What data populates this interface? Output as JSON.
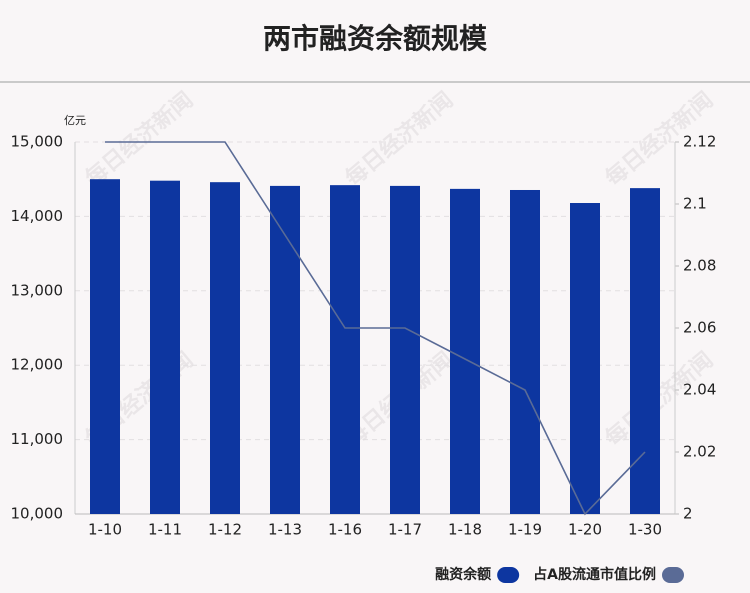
{
  "chart_data": {
    "type": "bar-line",
    "title": "两市融资余额规模",
    "y_unit": "亿元",
    "watermark": "每日经济新闻",
    "categories": [
      "1-10",
      "1-11",
      "1-12",
      "1-13",
      "1-16",
      "1-17",
      "1-18",
      "1-19",
      "1-20",
      "1-30"
    ],
    "series": [
      {
        "name": "融资余额",
        "type": "bar",
        "color": "#0d36a0",
        "values": [
          14500,
          14480,
          14460,
          14410,
          14420,
          14410,
          14370,
          14355,
          14180,
          14380
        ]
      },
      {
        "name": "占A股流通市值比例",
        "type": "line",
        "axis": "y2",
        "color": "#5a6b96",
        "values": [
          2.12,
          2.12,
          2.12,
          2.09,
          2.06,
          2.06,
          2.05,
          2.04,
          2.0,
          2.02
        ]
      }
    ],
    "ylim": [
      10000,
      15000
    ],
    "yticks": [
      {
        "value": 10000,
        "label": "10,000"
      },
      {
        "value": 11000,
        "label": "11,000"
      },
      {
        "value": 12000,
        "label": "12,000"
      },
      {
        "value": 13000,
        "label": "13,000"
      },
      {
        "value": 14000,
        "label": "14,000"
      },
      {
        "value": 15000,
        "label": "15,000"
      }
    ],
    "y2lim": [
      2,
      2.12
    ],
    "y2ticks": [
      2,
      2.02,
      2.04,
      2.06,
      2.08,
      2.1,
      2.12
    ],
    "grid": true
  }
}
